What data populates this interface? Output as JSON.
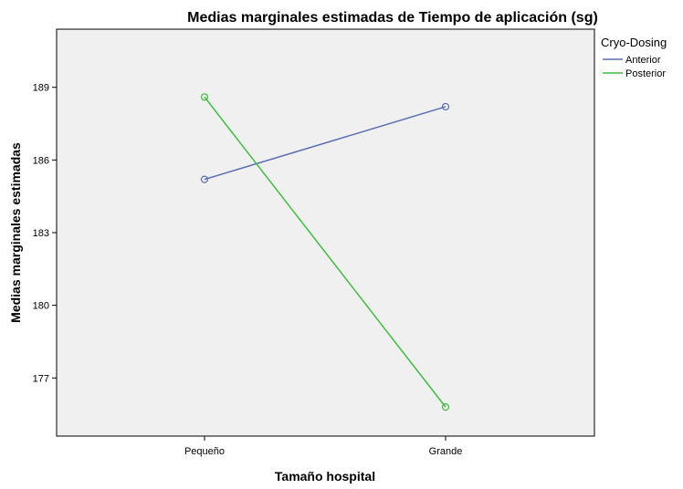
{
  "chart_data": {
    "type": "line",
    "title": "Medias marginales estimadas de Tiempo de aplicación (sg)",
    "xlabel": "Tamaño hospital",
    "ylabel": "Medias marginales estimadas",
    "categories": [
      "Pequeño",
      "Grande"
    ],
    "ylim": [
      174.6,
      191.4
    ],
    "yticks": [
      177,
      180,
      183,
      186,
      189
    ],
    "grid": false,
    "legend": {
      "title": "Cryo-Dosing",
      "placement": "right"
    },
    "series": [
      {
        "name": "Anterior",
        "color": "#5b6fb5",
        "values": [
          185.2,
          188.2
        ]
      },
      {
        "name": "Posterior",
        "color": "#3cbf3c",
        "values": [
          188.6,
          175.8
        ]
      }
    ]
  }
}
